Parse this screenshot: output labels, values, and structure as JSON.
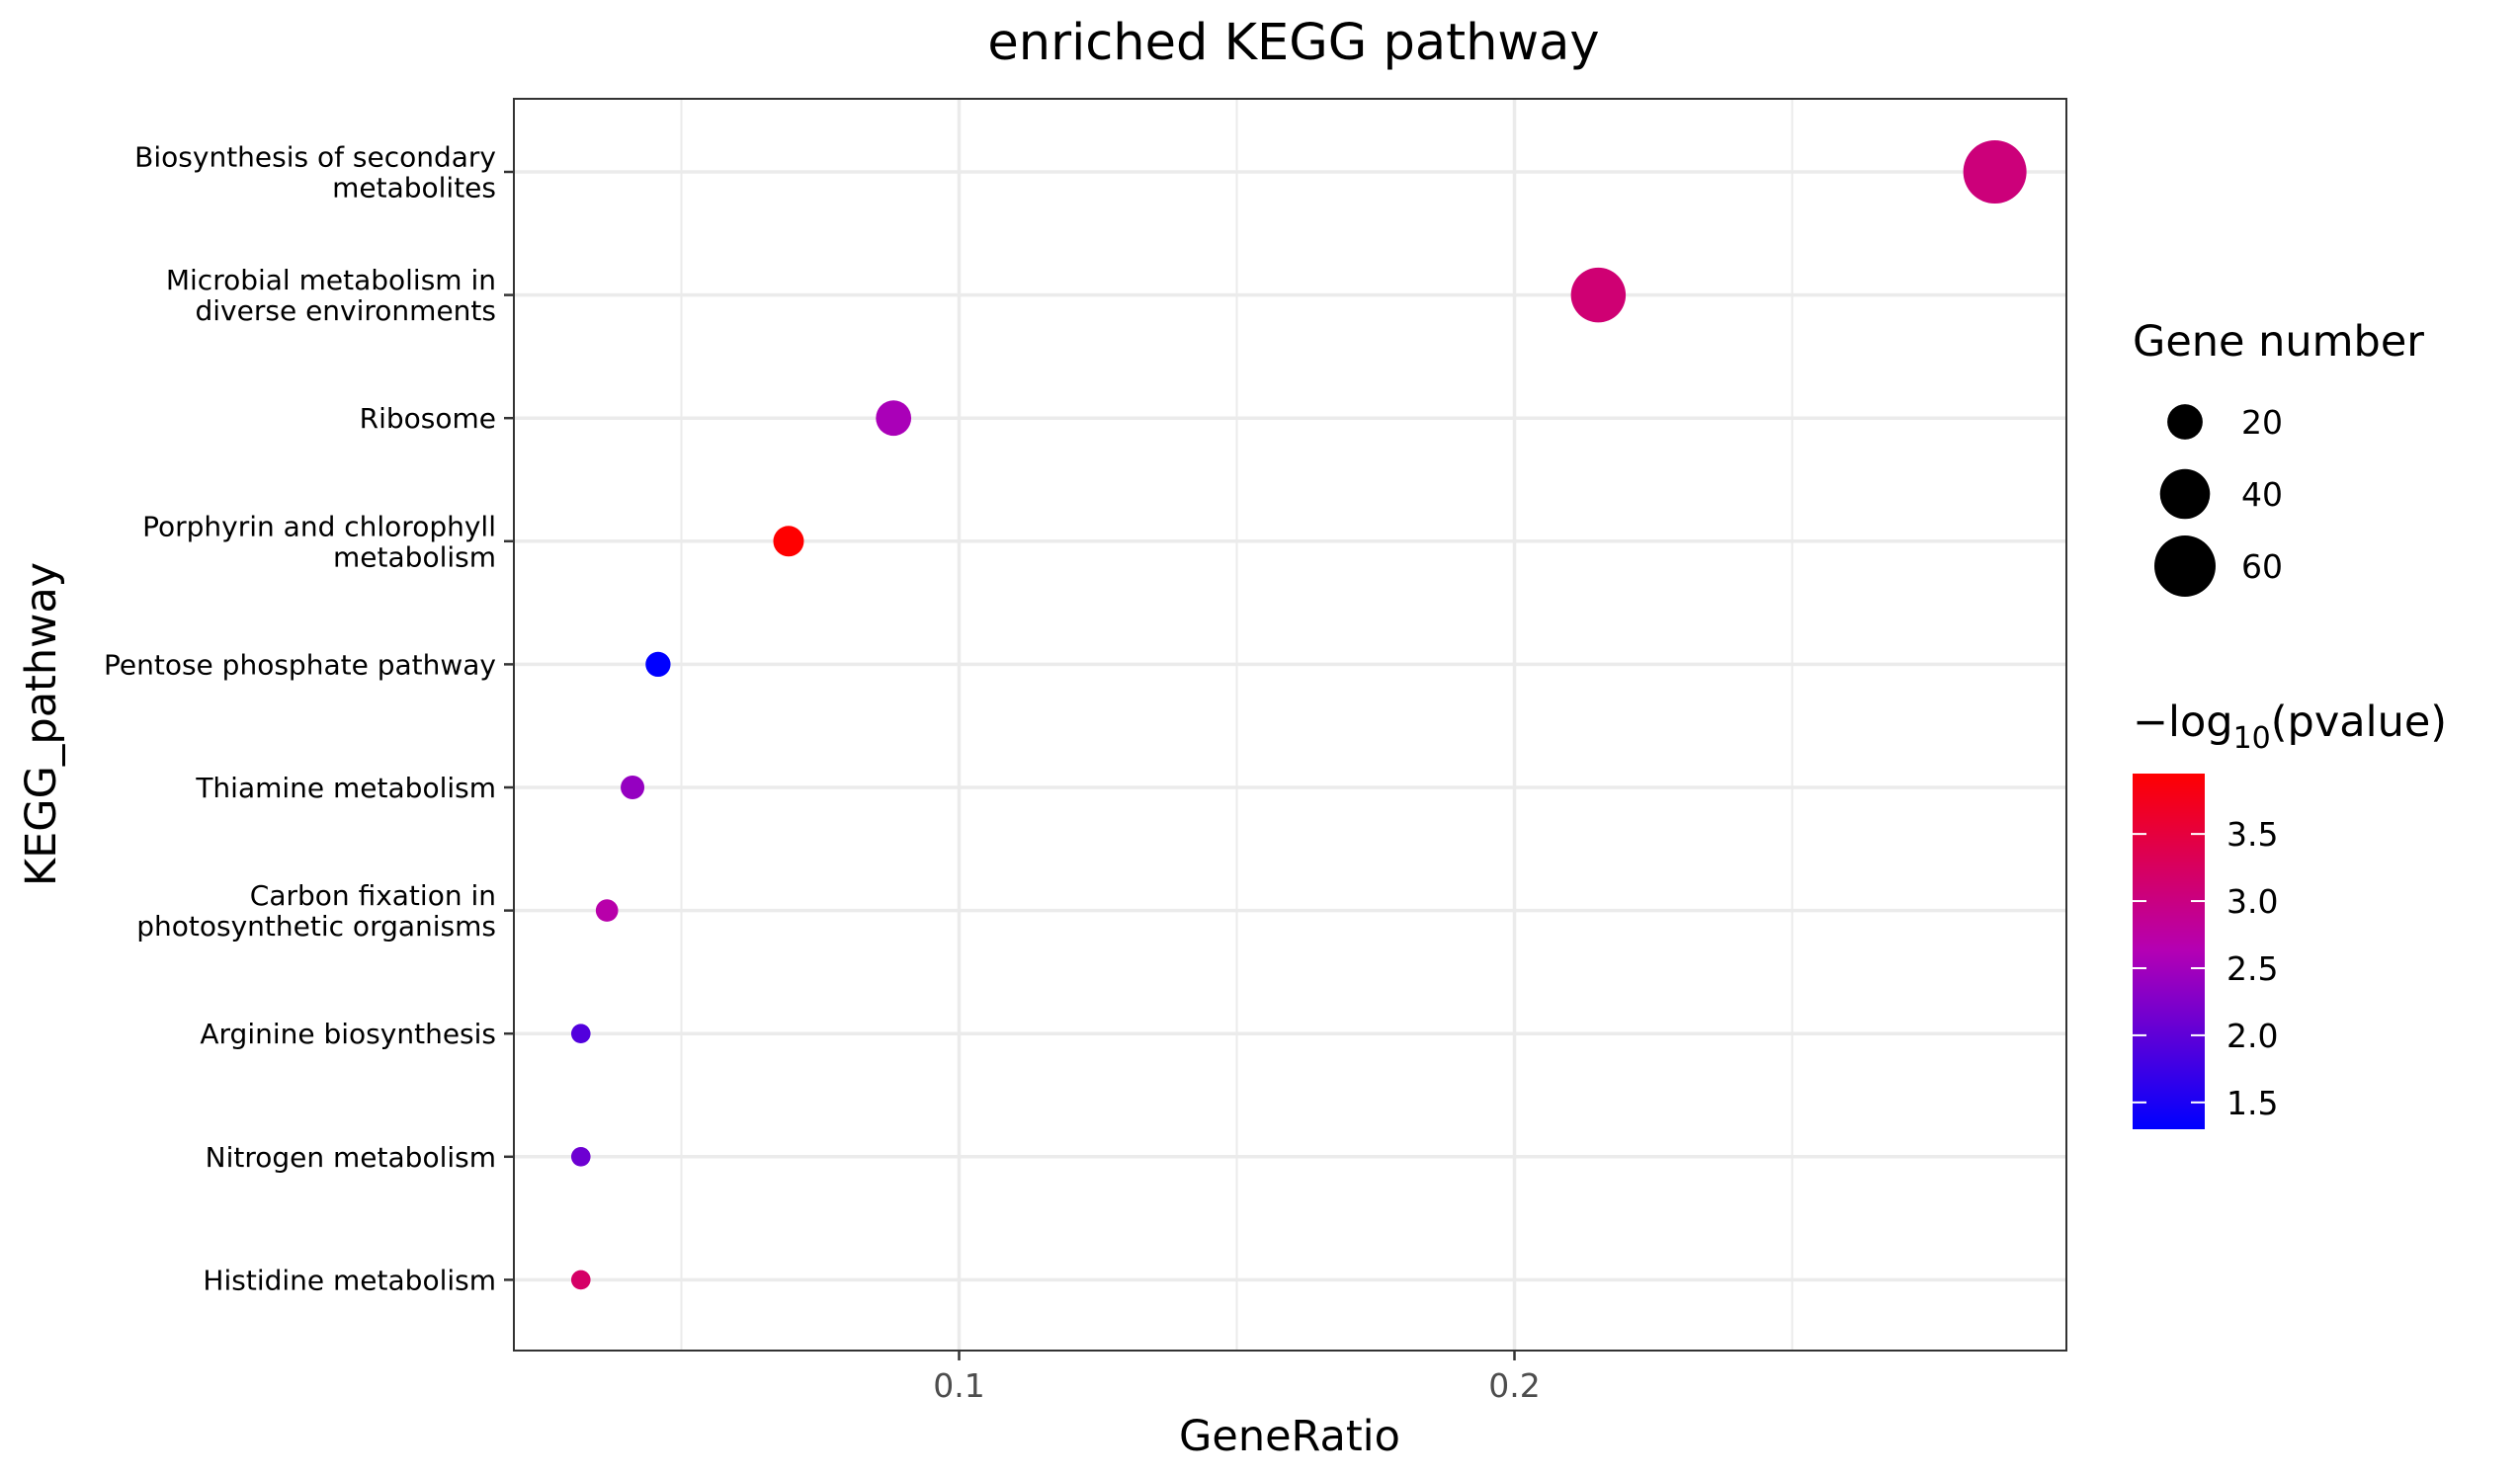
{
  "chart_data": {
    "type": "scatter",
    "title": "enriched KEGG pathway",
    "xlabel": "GeneRatio",
    "ylabel": "KEGG_pathway",
    "xlim": [
      0.02,
      0.3
    ],
    "x_ticks": [
      0.1,
      0.2
    ],
    "x_tick_labels": [
      "0.1",
      "0.2"
    ],
    "grid": true,
    "points": [
      {
        "pathway": [
          "Biosynthesis of secondary",
          "metabolites"
        ],
        "gene_ratio": 0.2865,
        "gene_number": 64,
        "neg_log10_pvalue": 3.05
      },
      {
        "pathway": [
          "Microbial metabolism in",
          "diverse environments"
        ],
        "gene_ratio": 0.2151,
        "gene_number": 48,
        "neg_log10_pvalue": 3.1
      },
      {
        "pathway": [
          "Ribosome"
        ],
        "gene_ratio": 0.0882,
        "gene_number": 20,
        "neg_log10_pvalue": 2.55
      },
      {
        "pathway": [
          "Porphyrin and chlorophyll",
          "metabolism"
        ],
        "gene_ratio": 0.0693,
        "gene_number": 15,
        "neg_log10_pvalue": 3.95
      },
      {
        "pathway": [
          "Pentose phosphate pathway"
        ],
        "gene_ratio": 0.0458,
        "gene_number": 10,
        "neg_log10_pvalue": 1.3
      },
      {
        "pathway": [
          "Thiamine metabolism"
        ],
        "gene_ratio": 0.0412,
        "gene_number": 9,
        "neg_log10_pvalue": 2.4
      },
      {
        "pathway": [
          "Carbon fixation in",
          "photosynthetic organisms"
        ],
        "gene_ratio": 0.0366,
        "gene_number": 8,
        "neg_log10_pvalue": 2.7
      },
      {
        "pathway": [
          "Arginine biosynthesis"
        ],
        "gene_ratio": 0.0319,
        "gene_number": 6,
        "neg_log10_pvalue": 1.9
      },
      {
        "pathway": [
          "Nitrogen metabolism"
        ],
        "gene_ratio": 0.0319,
        "gene_number": 6,
        "neg_log10_pvalue": 2.1
      },
      {
        "pathway": [
          "Histidine metabolism"
        ],
        "gene_ratio": 0.0319,
        "gene_number": 6,
        "neg_log10_pvalue": 3.2
      }
    ],
    "size_legend": {
      "title": "Gene number",
      "values": [
        20,
        40,
        60
      ],
      "labels": [
        "20",
        "40",
        "60"
      ]
    },
    "color_legend": {
      "title_prefix": "−log",
      "title_subscript": "10",
      "title_suffix": "(pvalue)",
      "range": [
        1.3,
        3.95
      ],
      "ticks": [
        1.5,
        2.0,
        2.5,
        3.0,
        3.5
      ],
      "tick_labels": [
        "1.5",
        "2.0",
        "2.5",
        "3.0",
        "3.5"
      ],
      "low_color": "#0000ff",
      "high_color": "#ff0000"
    }
  }
}
